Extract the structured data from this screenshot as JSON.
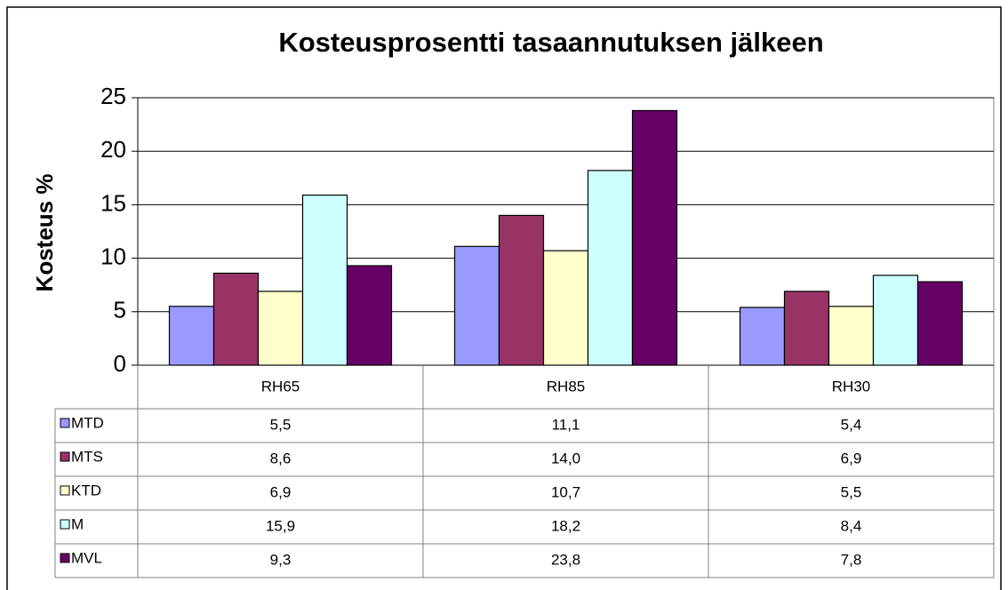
{
  "chart_data": {
    "type": "bar",
    "title": "Kosteusprosentti tasaannutuksen jälkeen",
    "y_label": "Kosteus %",
    "categories": [
      "RH65",
      "RH85",
      "RH30"
    ],
    "series": [
      {
        "name": "MTD",
        "color": "#9999ff",
        "values": [
          5.5,
          11.1,
          5.4
        ],
        "value_labels": [
          "5,5",
          "11,1",
          "5,4"
        ]
      },
      {
        "name": "MTS",
        "color": "#993366",
        "values": [
          8.6,
          14.0,
          6.9
        ],
        "value_labels": [
          "8,6",
          "14,0",
          "6,9"
        ]
      },
      {
        "name": "KTD",
        "color": "#ffffcc",
        "values": [
          6.9,
          10.7,
          5.5
        ],
        "value_labels": [
          "6,9",
          "10,7",
          "5,5"
        ]
      },
      {
        "name": "M",
        "color": "#ccffff",
        "values": [
          15.9,
          18.2,
          8.4
        ],
        "value_labels": [
          "15,9",
          "18,2",
          "8,4"
        ]
      },
      {
        "name": "MVL",
        "color": "#660066",
        "values": [
          9.3,
          23.8,
          7.8
        ],
        "value_labels": [
          "9,3",
          "23,8",
          "7,8"
        ]
      }
    ],
    "ylim": [
      0,
      25
    ],
    "yticks": [
      0,
      5,
      10,
      15,
      20,
      25
    ],
    "grid": true
  }
}
